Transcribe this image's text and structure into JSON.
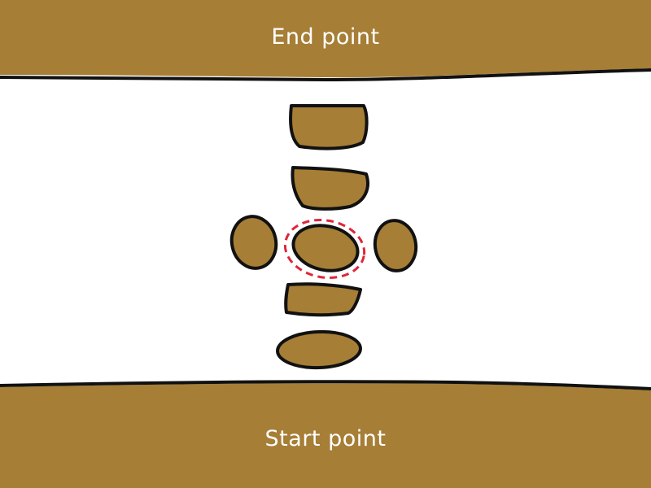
{
  "end_label": "End point",
  "start_label": "Start point",
  "colors": {
    "bank": "#a67e36",
    "stone": "#a67e36",
    "outline": "#111111",
    "selection": "#e0263a",
    "water": "#ffffff"
  },
  "stones": [
    {
      "name": "stone-1"
    },
    {
      "name": "stone-2"
    },
    {
      "name": "stone-left"
    },
    {
      "name": "stone-center",
      "selected": true
    },
    {
      "name": "stone-right"
    },
    {
      "name": "stone-4"
    },
    {
      "name": "stone-5"
    }
  ]
}
